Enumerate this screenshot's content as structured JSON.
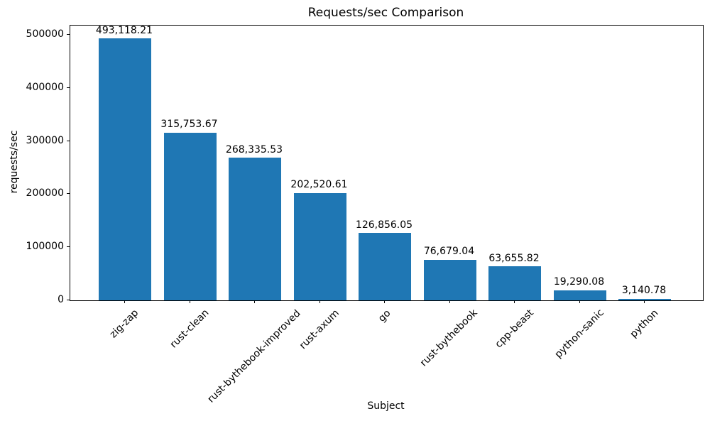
{
  "chart_data": {
    "type": "bar",
    "title": "Requests/sec Comparison",
    "xlabel": "Subject",
    "ylabel": "requests/sec",
    "categories": [
      "zig-zap",
      "rust-clean",
      "rust-bythebook-improved",
      "rust-axum",
      "go",
      "rust-bythebook",
      "cpp-beast",
      "python-sanic",
      "python"
    ],
    "values": [
      493118.21,
      315753.67,
      268335.53,
      202520.61,
      126856.05,
      76679.04,
      63655.82,
      19290.08,
      3140.78
    ],
    "value_labels": [
      "493,118.21",
      "315,753.67",
      "268,335.53",
      "202,520.61",
      "126,856.05",
      "76,679.04",
      "63,655.82",
      "19,290.08",
      "3,140.78"
    ],
    "ylim": [
      0,
      517380
    ],
    "yticks": [
      0,
      100000,
      200000,
      300000,
      400000,
      500000
    ],
    "ytick_labels": [
      "0",
      "100000",
      "200000",
      "300000",
      "400000",
      "500000"
    ],
    "bar_color": "#1f77b4",
    "axis_color": "#000000",
    "grid": false,
    "legend": "none"
  }
}
